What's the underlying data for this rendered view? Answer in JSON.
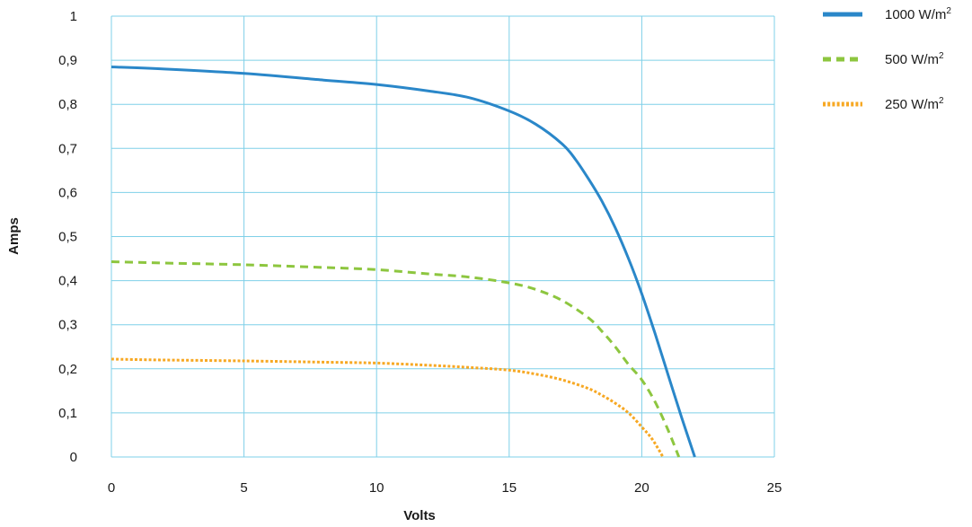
{
  "chart_data": {
    "type": "line",
    "xlabel": "Volts",
    "ylabel": "Amps",
    "xlim": [
      0,
      25
    ],
    "ylim": [
      0,
      1
    ],
    "x_ticks": [
      "0",
      "5",
      "10",
      "15",
      "20",
      "25"
    ],
    "y_ticks": [
      "0",
      "0,1",
      "0,2",
      "0,3",
      "0,4",
      "0,5",
      "0,6",
      "0,7",
      "0,8",
      "0,9",
      "1"
    ],
    "grid": true,
    "legend_position": "top-right",
    "grid_color": "#7fd0e8",
    "series": [
      {
        "name": "1000 W/m",
        "name_sup": "2",
        "color": "#2a87c9",
        "style": "solid",
        "x": [
          0,
          2,
          5,
          8,
          10,
          12,
          13.5,
          15,
          16,
          17,
          17.5,
          18,
          18.5,
          19,
          19.5,
          20,
          20.5,
          21,
          21.5,
          22
        ],
        "y": [
          0.885,
          0.88,
          0.87,
          0.855,
          0.845,
          0.83,
          0.815,
          0.785,
          0.755,
          0.71,
          0.675,
          0.63,
          0.58,
          0.52,
          0.45,
          0.37,
          0.28,
          0.185,
          0.09,
          0
        ]
      },
      {
        "name": "500 W/m",
        "name_sup": "2",
        "color": "#8dc63f",
        "style": "dashed",
        "x": [
          0,
          2,
          5,
          8,
          10,
          12,
          13.5,
          15,
          16,
          17,
          18,
          18.5,
          19,
          19.5,
          20,
          20.5,
          21,
          21.4
        ],
        "y": [
          0.443,
          0.44,
          0.436,
          0.43,
          0.425,
          0.415,
          0.408,
          0.395,
          0.38,
          0.355,
          0.315,
          0.285,
          0.25,
          0.21,
          0.175,
          0.125,
          0.06,
          0
        ]
      },
      {
        "name": "250 W/m",
        "name_sup": "2",
        "color": "#f7a823",
        "style": "dotted",
        "x": [
          0,
          2,
          5,
          8,
          10,
          12,
          13.5,
          15,
          16,
          17,
          18,
          18.5,
          19,
          19.5,
          20,
          20.4,
          20.8
        ],
        "y": [
          0.222,
          0.22,
          0.218,
          0.215,
          0.213,
          0.208,
          0.203,
          0.197,
          0.188,
          0.175,
          0.155,
          0.14,
          0.122,
          0.1,
          0.068,
          0.04,
          0
        ]
      }
    ]
  }
}
